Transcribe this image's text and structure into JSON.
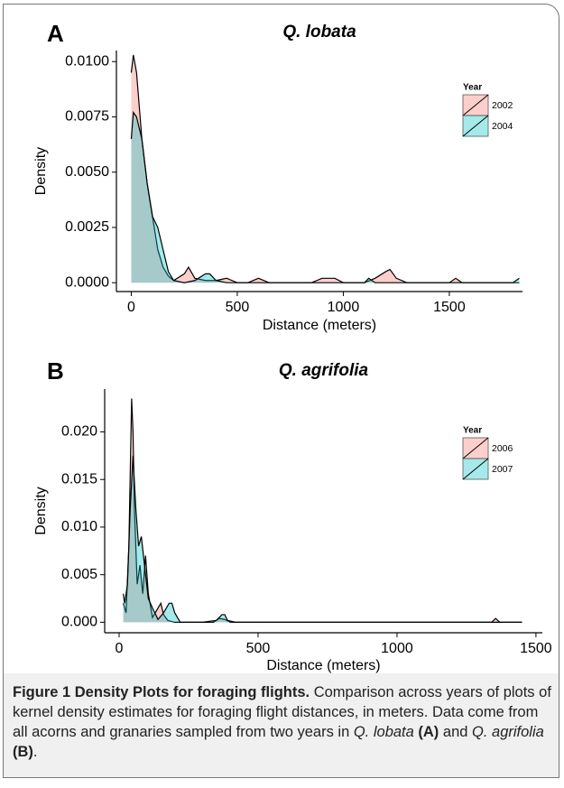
{
  "chart_data": [
    {
      "type": "density",
      "panel_label": "A",
      "title": "Q. lobata",
      "x_label": "Distance (meters)",
      "y_label": "Density",
      "legend_title": "Year",
      "xlim": [
        -70,
        1845
      ],
      "ylim": [
        -0.0004,
        0.0105
      ],
      "xticks": [
        0,
        500,
        1000,
        1500
      ],
      "yticks": [
        {
          "value": 0,
          "label": "0.0000"
        },
        {
          "value": 0.0025,
          "label": "0.0025"
        },
        {
          "value": 0.005,
          "label": "0.0050"
        },
        {
          "value": 0.0075,
          "label": "0.0075"
        },
        {
          "value": 0.01,
          "label": "0.0100"
        }
      ],
      "series": [
        {
          "name": "2002",
          "color": "#f8766d",
          "x": [
            0,
            10,
            25,
            50,
            75,
            100,
            125,
            150,
            175,
            200,
            250,
            270,
            300,
            350,
            400,
            450,
            500,
            550,
            600,
            650,
            850,
            900,
            960,
            1000,
            1100,
            1150,
            1200,
            1220,
            1250,
            1300,
            1500,
            1530,
            1560,
            1830
          ],
          "values": [
            0.0095,
            0.0103,
            0.0095,
            0.0065,
            0.0045,
            0.003,
            0.0015,
            0.0007,
            0.0003,
            0.0001,
            0.0004,
            0.0007,
            0.0002,
            0.0001,
            0.0001,
            0.0002,
            0,
            0,
            0.0002,
            0,
            0,
            0.0002,
            0.0002,
            0,
            0,
            0.0002,
            0.0005,
            0.0006,
            0.0002,
            0,
            0,
            0.0002,
            0,
            0
          ]
        },
        {
          "name": "2004",
          "color": "#00bfc4",
          "x": [
            0,
            10,
            25,
            50,
            75,
            100,
            125,
            150,
            175,
            200,
            250,
            300,
            350,
            370,
            400,
            450,
            500,
            1100,
            1120,
            1150,
            1800,
            1830
          ],
          "values": [
            0.0065,
            0.0077,
            0.0075,
            0.0065,
            0.0045,
            0.003,
            0.0025,
            0.0015,
            0.0005,
            0.0001,
            0,
            0.0001,
            0.0004,
            0.0004,
            0.0001,
            0,
            0,
            0,
            0.0002,
            0,
            0,
            0.0002
          ]
        }
      ]
    },
    {
      "type": "density",
      "panel_label": "B",
      "title": "Q. agrifolia",
      "x_label": "Distance (meters)",
      "y_label": "Density",
      "legend_title": "Year",
      "xlim": [
        -52,
        1523
      ],
      "ylim": [
        -0.0011,
        0.0245
      ],
      "xticks": [
        0,
        500,
        1000,
        1500
      ],
      "yticks": [
        {
          "value": 0,
          "label": "0.000"
        },
        {
          "value": 0.005,
          "label": "0.005"
        },
        {
          "value": 0.01,
          "label": "0.010"
        },
        {
          "value": 0.015,
          "label": "0.015"
        },
        {
          "value": 0.02,
          "label": "0.020"
        }
      ],
      "series": [
        {
          "name": "2006",
          "color": "#f8766d",
          "x": [
            15,
            25,
            35,
            45,
            50,
            55,
            65,
            75,
            85,
            95,
            105,
            120,
            140,
            150,
            160,
            175,
            200,
            250,
            340,
            360,
            380,
            400,
            500,
            1340,
            1355,
            1370,
            1450
          ],
          "values": [
            0.002,
            0.001,
            0.008,
            0.0235,
            0.02,
            0.012,
            0.004,
            0.006,
            0.003,
            0.007,
            0.003,
            0.0005,
            0.0015,
            0.002,
            0.0008,
            0.0002,
            0,
            0,
            0,
            0.0004,
            0.0003,
            0,
            0,
            0,
            0.0004,
            0,
            0
          ]
        },
        {
          "name": "2007",
          "color": "#00bfc4",
          "x": [
            15,
            20,
            30,
            40,
            50,
            60,
            70,
            80,
            95,
            105,
            120,
            140,
            160,
            180,
            190,
            200,
            220,
            300,
            350,
            370,
            380,
            390,
            420,
            1450
          ],
          "values": [
            0.003,
            0.002,
            0.004,
            0.012,
            0.0175,
            0.012,
            0.008,
            0.009,
            0.005,
            0.0025,
            0.0015,
            0.0003,
            0.001,
            0.002,
            0.002,
            0.001,
            0,
            0,
            0.0002,
            0.0008,
            0.0008,
            0.0002,
            0,
            0
          ]
        }
      ]
    }
  ],
  "caption": {
    "title": "Figure 1 Density Plots for foraging flights.",
    "text": [
      {
        "text": "Comparison across years of plots of kernel density estimates for foraging flight distances, in meters. Data come from all acorns and granaries sampled from two years in ",
        "style": "normal"
      },
      {
        "text": "Q. lobata",
        "style": "italic"
      },
      {
        "text": " (A)",
        "style": "bold"
      },
      {
        "text": " and ",
        "style": "normal"
      },
      {
        "text": "Q. agrifolia",
        "style": "italic"
      },
      {
        "text": " (B)",
        "style": "bold"
      },
      {
        "text": ".",
        "style": "normal"
      }
    ]
  }
}
